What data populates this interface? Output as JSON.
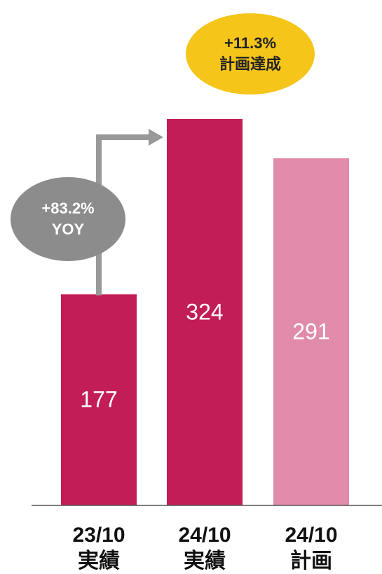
{
  "chart_data": {
    "type": "bar",
    "categories": [
      "23/10\n実績",
      "24/10\n実績",
      "24/10\n計画"
    ],
    "values": [
      177,
      324,
      291
    ],
    "colors": [
      "#c21d56",
      "#c21d56",
      "#e08ba9"
    ],
    "annotations": [
      {
        "text": "+83.2%\nYOY",
        "color": "#8c8c8c"
      },
      {
        "text": "+11.3%\n計画達成",
        "color": "#f5c51a"
      }
    ]
  }
}
